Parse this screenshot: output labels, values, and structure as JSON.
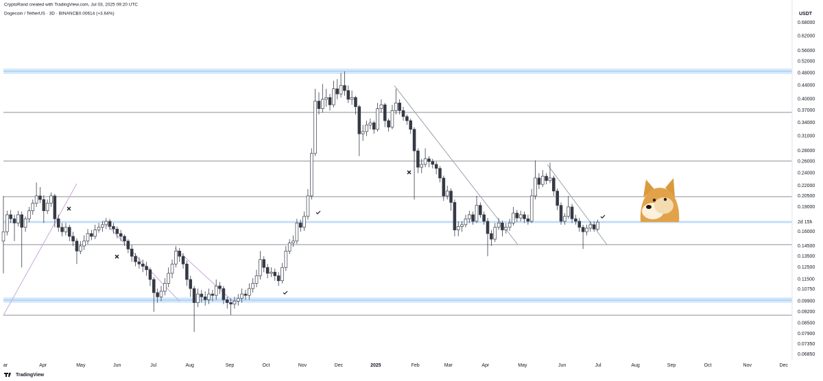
{
  "chart_data": {
    "type": "candlestick",
    "attribution": "CryptoRand created with TradingView.com, Jul 03, 2025 09:20 UTC",
    "title": "Dogecoin / TetherUS · 3D · BINANCE",
    "change": "+0.00614 (+3.64%)",
    "currency": "USDT",
    "countdown": "2d 15h",
    "brand": "TradingView",
    "log_scale": true,
    "grid": false,
    "up_color": "#ffffff",
    "down_color": "#363a45",
    "outline_color": "#363a45",
    "ylim": [
      0.066,
      0.795
    ],
    "yticks": [
      {
        "value": 0.68,
        "label": "0.68000"
      },
      {
        "value": 0.62,
        "label": "0.62000"
      },
      {
        "value": 0.56,
        "label": "0.56000"
      },
      {
        "value": 0.52,
        "label": "0.52000"
      },
      {
        "value": 0.48,
        "label": "0.48000"
      },
      {
        "value": 0.44,
        "label": "0.44000"
      },
      {
        "value": 0.4,
        "label": "0.40000"
      },
      {
        "value": 0.37,
        "label": "0.37000"
      },
      {
        "value": 0.34,
        "label": "0.34000"
      },
      {
        "value": 0.31,
        "label": "0.31000"
      },
      {
        "value": 0.28,
        "label": "0.28000"
      },
      {
        "value": 0.26,
        "label": "0.26000"
      },
      {
        "value": 0.24,
        "label": "0.24000"
      },
      {
        "value": 0.22,
        "label": "0.22000"
      },
      {
        "value": 0.205,
        "label": "0.20500"
      },
      {
        "value": 0.19,
        "label": "0.19000"
      },
      {
        "value": 0.16,
        "label": "0.16000"
      },
      {
        "value": 0.145,
        "label": "0.14500"
      },
      {
        "value": 0.135,
        "label": "0.13500"
      },
      {
        "value": 0.125,
        "label": "0.12500"
      },
      {
        "value": 0.115,
        "label": "0.11500"
      },
      {
        "value": 0.1075,
        "label": "0.10750"
      },
      {
        "value": 0.099,
        "label": "0.09900"
      },
      {
        "value": 0.092,
        "label": "0.09200"
      },
      {
        "value": 0.085,
        "label": "0.08500"
      },
      {
        "value": 0.079,
        "label": "0.07900"
      },
      {
        "value": 0.0735,
        "label": "0.07350"
      },
      {
        "value": 0.0685,
        "label": "0.06850"
      }
    ],
    "xlim": [
      -0.93,
      215
    ],
    "xticks": [
      {
        "value": 0.56,
        "label": "ar"
      },
      {
        "value": 10.8,
        "label": "Apr"
      },
      {
        "value": 21.1,
        "label": "May"
      },
      {
        "value": 31.0,
        "label": "Jun"
      },
      {
        "value": 40.9,
        "label": "Jul"
      },
      {
        "value": 50.8,
        "label": "Aug"
      },
      {
        "value": 61.7,
        "label": "Sep"
      },
      {
        "value": 71.6,
        "label": "Oct"
      },
      {
        "value": 81.5,
        "label": "Nov"
      },
      {
        "value": 91.4,
        "label": "Dec"
      },
      {
        "value": 101.5,
        "label": "2025"
      },
      {
        "value": 112.3,
        "label": "Feb"
      },
      {
        "value": 121.3,
        "label": "Mar"
      },
      {
        "value": 131.4,
        "label": "Apr"
      },
      {
        "value": 141.5,
        "label": "May"
      },
      {
        "value": 152.3,
        "label": "Jun"
      },
      {
        "value": 162.1,
        "label": "Jul"
      },
      {
        "value": 172.3,
        "label": "Aug"
      },
      {
        "value": 182.1,
        "label": "Sep"
      },
      {
        "value": 192.0,
        "label": "Oct"
      },
      {
        "value": 202.8,
        "label": "Nov"
      },
      {
        "value": 212.7,
        "label": "Dec"
      }
    ],
    "ohlc": [
      [
        0.15,
        0.205,
        0.12,
        0.16
      ],
      [
        0.16,
        0.185,
        0.156,
        0.18
      ],
      [
        0.18,
        0.186,
        0.17,
        0.175
      ],
      [
        0.175,
        0.18,
        0.15,
        0.17
      ],
      [
        0.17,
        0.185,
        0.166,
        0.18
      ],
      [
        0.18,
        0.184,
        0.125,
        0.165
      ],
      [
        0.165,
        0.178,
        0.16,
        0.175
      ],
      [
        0.175,
        0.19,
        0.171,
        0.185
      ],
      [
        0.185,
        0.2,
        0.18,
        0.195
      ],
      [
        0.195,
        0.225,
        0.19,
        0.205
      ],
      [
        0.205,
        0.218,
        0.195,
        0.2
      ],
      [
        0.2,
        0.206,
        0.17,
        0.185
      ],
      [
        0.185,
        0.2,
        0.181,
        0.195
      ],
      [
        0.195,
        0.21,
        0.19,
        0.205
      ],
      [
        0.205,
        0.208,
        0.165,
        0.175
      ],
      [
        0.175,
        0.18,
        0.16,
        0.165
      ],
      [
        0.165,
        0.17,
        0.155,
        0.16
      ],
      [
        0.16,
        0.17,
        0.156,
        0.165
      ],
      [
        0.165,
        0.168,
        0.15,
        0.155
      ],
      [
        0.155,
        0.16,
        0.145,
        0.15
      ],
      [
        0.15,
        0.153,
        0.128,
        0.14
      ],
      [
        0.14,
        0.15,
        0.137,
        0.145
      ],
      [
        0.145,
        0.156,
        0.141,
        0.15
      ],
      [
        0.15,
        0.163,
        0.147,
        0.158
      ],
      [
        0.158,
        0.162,
        0.151,
        0.155
      ],
      [
        0.155,
        0.168,
        0.152,
        0.162
      ],
      [
        0.162,
        0.17,
        0.159,
        0.165
      ],
      [
        0.165,
        0.172,
        0.16,
        0.168
      ],
      [
        0.168,
        0.176,
        0.163,
        0.172
      ],
      [
        0.172,
        0.175,
        0.162,
        0.166
      ],
      [
        0.166,
        0.17,
        0.158,
        0.163
      ],
      [
        0.163,
        0.166,
        0.153,
        0.158
      ],
      [
        0.158,
        0.162,
        0.15,
        0.155
      ],
      [
        0.155,
        0.157,
        0.145,
        0.15
      ],
      [
        0.15,
        0.152,
        0.138,
        0.142
      ],
      [
        0.142,
        0.146,
        0.13,
        0.135
      ],
      [
        0.135,
        0.138,
        0.126,
        0.13
      ],
      [
        0.13,
        0.134,
        0.124,
        0.128
      ],
      [
        0.128,
        0.132,
        0.121,
        0.126
      ],
      [
        0.126,
        0.13,
        0.118,
        0.123
      ],
      [
        0.123,
        0.125,
        0.11,
        0.115
      ],
      [
        0.115,
        0.117,
        0.092,
        0.105
      ],
      [
        0.105,
        0.108,
        0.098,
        0.102
      ],
      [
        0.102,
        0.11,
        0.099,
        0.106
      ],
      [
        0.106,
        0.116,
        0.103,
        0.112
      ],
      [
        0.112,
        0.125,
        0.109,
        0.12
      ],
      [
        0.12,
        0.132,
        0.116,
        0.128
      ],
      [
        0.128,
        0.145,
        0.125,
        0.14
      ],
      [
        0.14,
        0.143,
        0.13,
        0.135
      ],
      [
        0.135,
        0.138,
        0.124,
        0.128
      ],
      [
        0.128,
        0.131,
        0.11,
        0.115
      ],
      [
        0.115,
        0.118,
        0.102,
        0.108
      ],
      [
        0.108,
        0.11,
        0.08,
        0.098
      ],
      [
        0.098,
        0.108,
        0.095,
        0.104
      ],
      [
        0.104,
        0.107,
        0.098,
        0.102
      ],
      [
        0.102,
        0.106,
        0.096,
        0.1
      ],
      [
        0.1,
        0.108,
        0.097,
        0.104
      ],
      [
        0.104,
        0.107,
        0.099,
        0.103
      ],
      [
        0.103,
        0.115,
        0.1,
        0.11
      ],
      [
        0.11,
        0.113,
        0.104,
        0.108
      ],
      [
        0.108,
        0.11,
        0.097,
        0.1
      ],
      [
        0.1,
        0.102,
        0.094,
        0.098
      ],
      [
        0.098,
        0.101,
        0.09,
        0.097
      ],
      [
        0.097,
        0.102,
        0.094,
        0.099
      ],
      [
        0.099,
        0.104,
        0.096,
        0.101
      ],
      [
        0.101,
        0.108,
        0.098,
        0.104
      ],
      [
        0.104,
        0.107,
        0.1,
        0.103
      ],
      [
        0.103,
        0.112,
        0.1,
        0.108
      ],
      [
        0.108,
        0.116,
        0.105,
        0.112
      ],
      [
        0.112,
        0.123,
        0.109,
        0.118
      ],
      [
        0.118,
        0.14,
        0.115,
        0.132
      ],
      [
        0.132,
        0.135,
        0.121,
        0.125
      ],
      [
        0.125,
        0.128,
        0.116,
        0.12
      ],
      [
        0.12,
        0.125,
        0.117,
        0.121
      ],
      [
        0.121,
        0.124,
        0.114,
        0.118
      ],
      [
        0.118,
        0.121,
        0.11,
        0.114
      ],
      [
        0.114,
        0.129,
        0.112,
        0.125
      ],
      [
        0.125,
        0.145,
        0.122,
        0.14
      ],
      [
        0.14,
        0.152,
        0.137,
        0.148
      ],
      [
        0.148,
        0.156,
        0.144,
        0.15
      ],
      [
        0.15,
        0.175,
        0.147,
        0.17
      ],
      [
        0.17,
        0.174,
        0.16,
        0.165
      ],
      [
        0.165,
        0.184,
        0.161,
        0.178
      ],
      [
        0.178,
        0.215,
        0.174,
        0.205
      ],
      [
        0.205,
        0.285,
        0.2,
        0.275
      ],
      [
        0.275,
        0.43,
        0.27,
        0.395
      ],
      [
        0.395,
        0.42,
        0.36,
        0.375
      ],
      [
        0.375,
        0.445,
        0.365,
        0.4
      ],
      [
        0.4,
        0.43,
        0.38,
        0.405
      ],
      [
        0.405,
        0.415,
        0.37,
        0.385
      ],
      [
        0.385,
        0.455,
        0.378,
        0.43
      ],
      [
        0.43,
        0.46,
        0.4,
        0.415
      ],
      [
        0.415,
        0.48,
        0.405,
        0.44
      ],
      [
        0.44,
        0.485,
        0.41,
        0.425
      ],
      [
        0.425,
        0.44,
        0.39,
        0.4
      ],
      [
        0.4,
        0.425,
        0.385,
        0.405
      ],
      [
        0.405,
        0.41,
        0.36,
        0.38
      ],
      [
        0.38,
        0.385,
        0.27,
        0.315
      ],
      [
        0.315,
        0.335,
        0.3,
        0.32
      ],
      [
        0.32,
        0.345,
        0.31,
        0.335
      ],
      [
        0.335,
        0.35,
        0.325,
        0.34
      ],
      [
        0.34,
        0.345,
        0.315,
        0.325
      ],
      [
        0.325,
        0.39,
        0.32,
        0.375
      ],
      [
        0.375,
        0.4,
        0.365,
        0.385
      ],
      [
        0.385,
        0.39,
        0.33,
        0.345
      ],
      [
        0.345,
        0.35,
        0.32,
        0.33
      ],
      [
        0.33,
        0.385,
        0.325,
        0.37
      ],
      [
        0.37,
        0.43,
        0.36,
        0.39
      ],
      [
        0.39,
        0.4,
        0.36,
        0.37
      ],
      [
        0.37,
        0.38,
        0.345,
        0.355
      ],
      [
        0.355,
        0.36,
        0.335,
        0.345
      ],
      [
        0.345,
        0.35,
        0.315,
        0.325
      ],
      [
        0.325,
        0.33,
        0.2,
        0.28
      ],
      [
        0.28,
        0.285,
        0.24,
        0.25
      ],
      [
        0.25,
        0.265,
        0.24,
        0.255
      ],
      [
        0.255,
        0.285,
        0.25,
        0.265
      ],
      [
        0.265,
        0.27,
        0.25,
        0.26
      ],
      [
        0.26,
        0.265,
        0.248,
        0.255
      ],
      [
        0.255,
        0.26,
        0.238,
        0.248
      ],
      [
        0.248,
        0.252,
        0.225,
        0.232
      ],
      [
        0.232,
        0.236,
        0.198,
        0.205
      ],
      [
        0.205,
        0.22,
        0.2,
        0.212
      ],
      [
        0.212,
        0.216,
        0.185,
        0.196
      ],
      [
        0.196,
        0.2,
        0.155,
        0.162
      ],
      [
        0.162,
        0.172,
        0.155,
        0.166
      ],
      [
        0.166,
        0.172,
        0.16,
        0.168
      ],
      [
        0.168,
        0.18,
        0.165,
        0.175
      ],
      [
        0.175,
        0.185,
        0.17,
        0.18
      ],
      [
        0.18,
        0.184,
        0.168,
        0.172
      ],
      [
        0.172,
        0.205,
        0.17,
        0.192
      ],
      [
        0.192,
        0.196,
        0.176,
        0.18
      ],
      [
        0.18,
        0.184,
        0.168,
        0.172
      ],
      [
        0.172,
        0.176,
        0.135,
        0.158
      ],
      [
        0.158,
        0.162,
        0.145,
        0.152
      ],
      [
        0.152,
        0.17,
        0.149,
        0.165
      ],
      [
        0.165,
        0.176,
        0.162,
        0.17
      ],
      [
        0.17,
        0.173,
        0.155,
        0.162
      ],
      [
        0.162,
        0.17,
        0.158,
        0.165
      ],
      [
        0.165,
        0.175,
        0.161,
        0.17
      ],
      [
        0.17,
        0.19,
        0.167,
        0.182
      ],
      [
        0.182,
        0.186,
        0.171,
        0.176
      ],
      [
        0.176,
        0.185,
        0.172,
        0.18
      ],
      [
        0.18,
        0.184,
        0.17,
        0.175
      ],
      [
        0.175,
        0.18,
        0.168,
        0.172
      ],
      [
        0.172,
        0.215,
        0.17,
        0.205
      ],
      [
        0.205,
        0.262,
        0.2,
        0.232
      ],
      [
        0.232,
        0.24,
        0.215,
        0.222
      ],
      [
        0.222,
        0.245,
        0.218,
        0.235
      ],
      [
        0.235,
        0.24,
        0.222,
        0.228
      ],
      [
        0.228,
        0.258,
        0.224,
        0.232
      ],
      [
        0.232,
        0.236,
        0.205,
        0.212
      ],
      [
        0.212,
        0.216,
        0.186,
        0.192
      ],
      [
        0.192,
        0.196,
        0.168,
        0.172
      ],
      [
        0.172,
        0.182,
        0.168,
        0.178
      ],
      [
        0.178,
        0.205,
        0.175,
        0.19
      ],
      [
        0.19,
        0.194,
        0.17,
        0.175
      ],
      [
        0.175,
        0.18,
        0.168,
        0.172
      ],
      [
        0.172,
        0.176,
        0.16,
        0.165
      ],
      [
        0.165,
        0.168,
        0.142,
        0.16
      ],
      [
        0.16,
        0.168,
        0.156,
        0.164
      ],
      [
        0.164,
        0.172,
        0.16,
        0.168
      ],
      [
        0.168,
        0.172,
        0.16,
        0.163
      ],
      [
        0.163,
        0.174,
        0.161,
        0.171
      ]
    ]
  }
}
